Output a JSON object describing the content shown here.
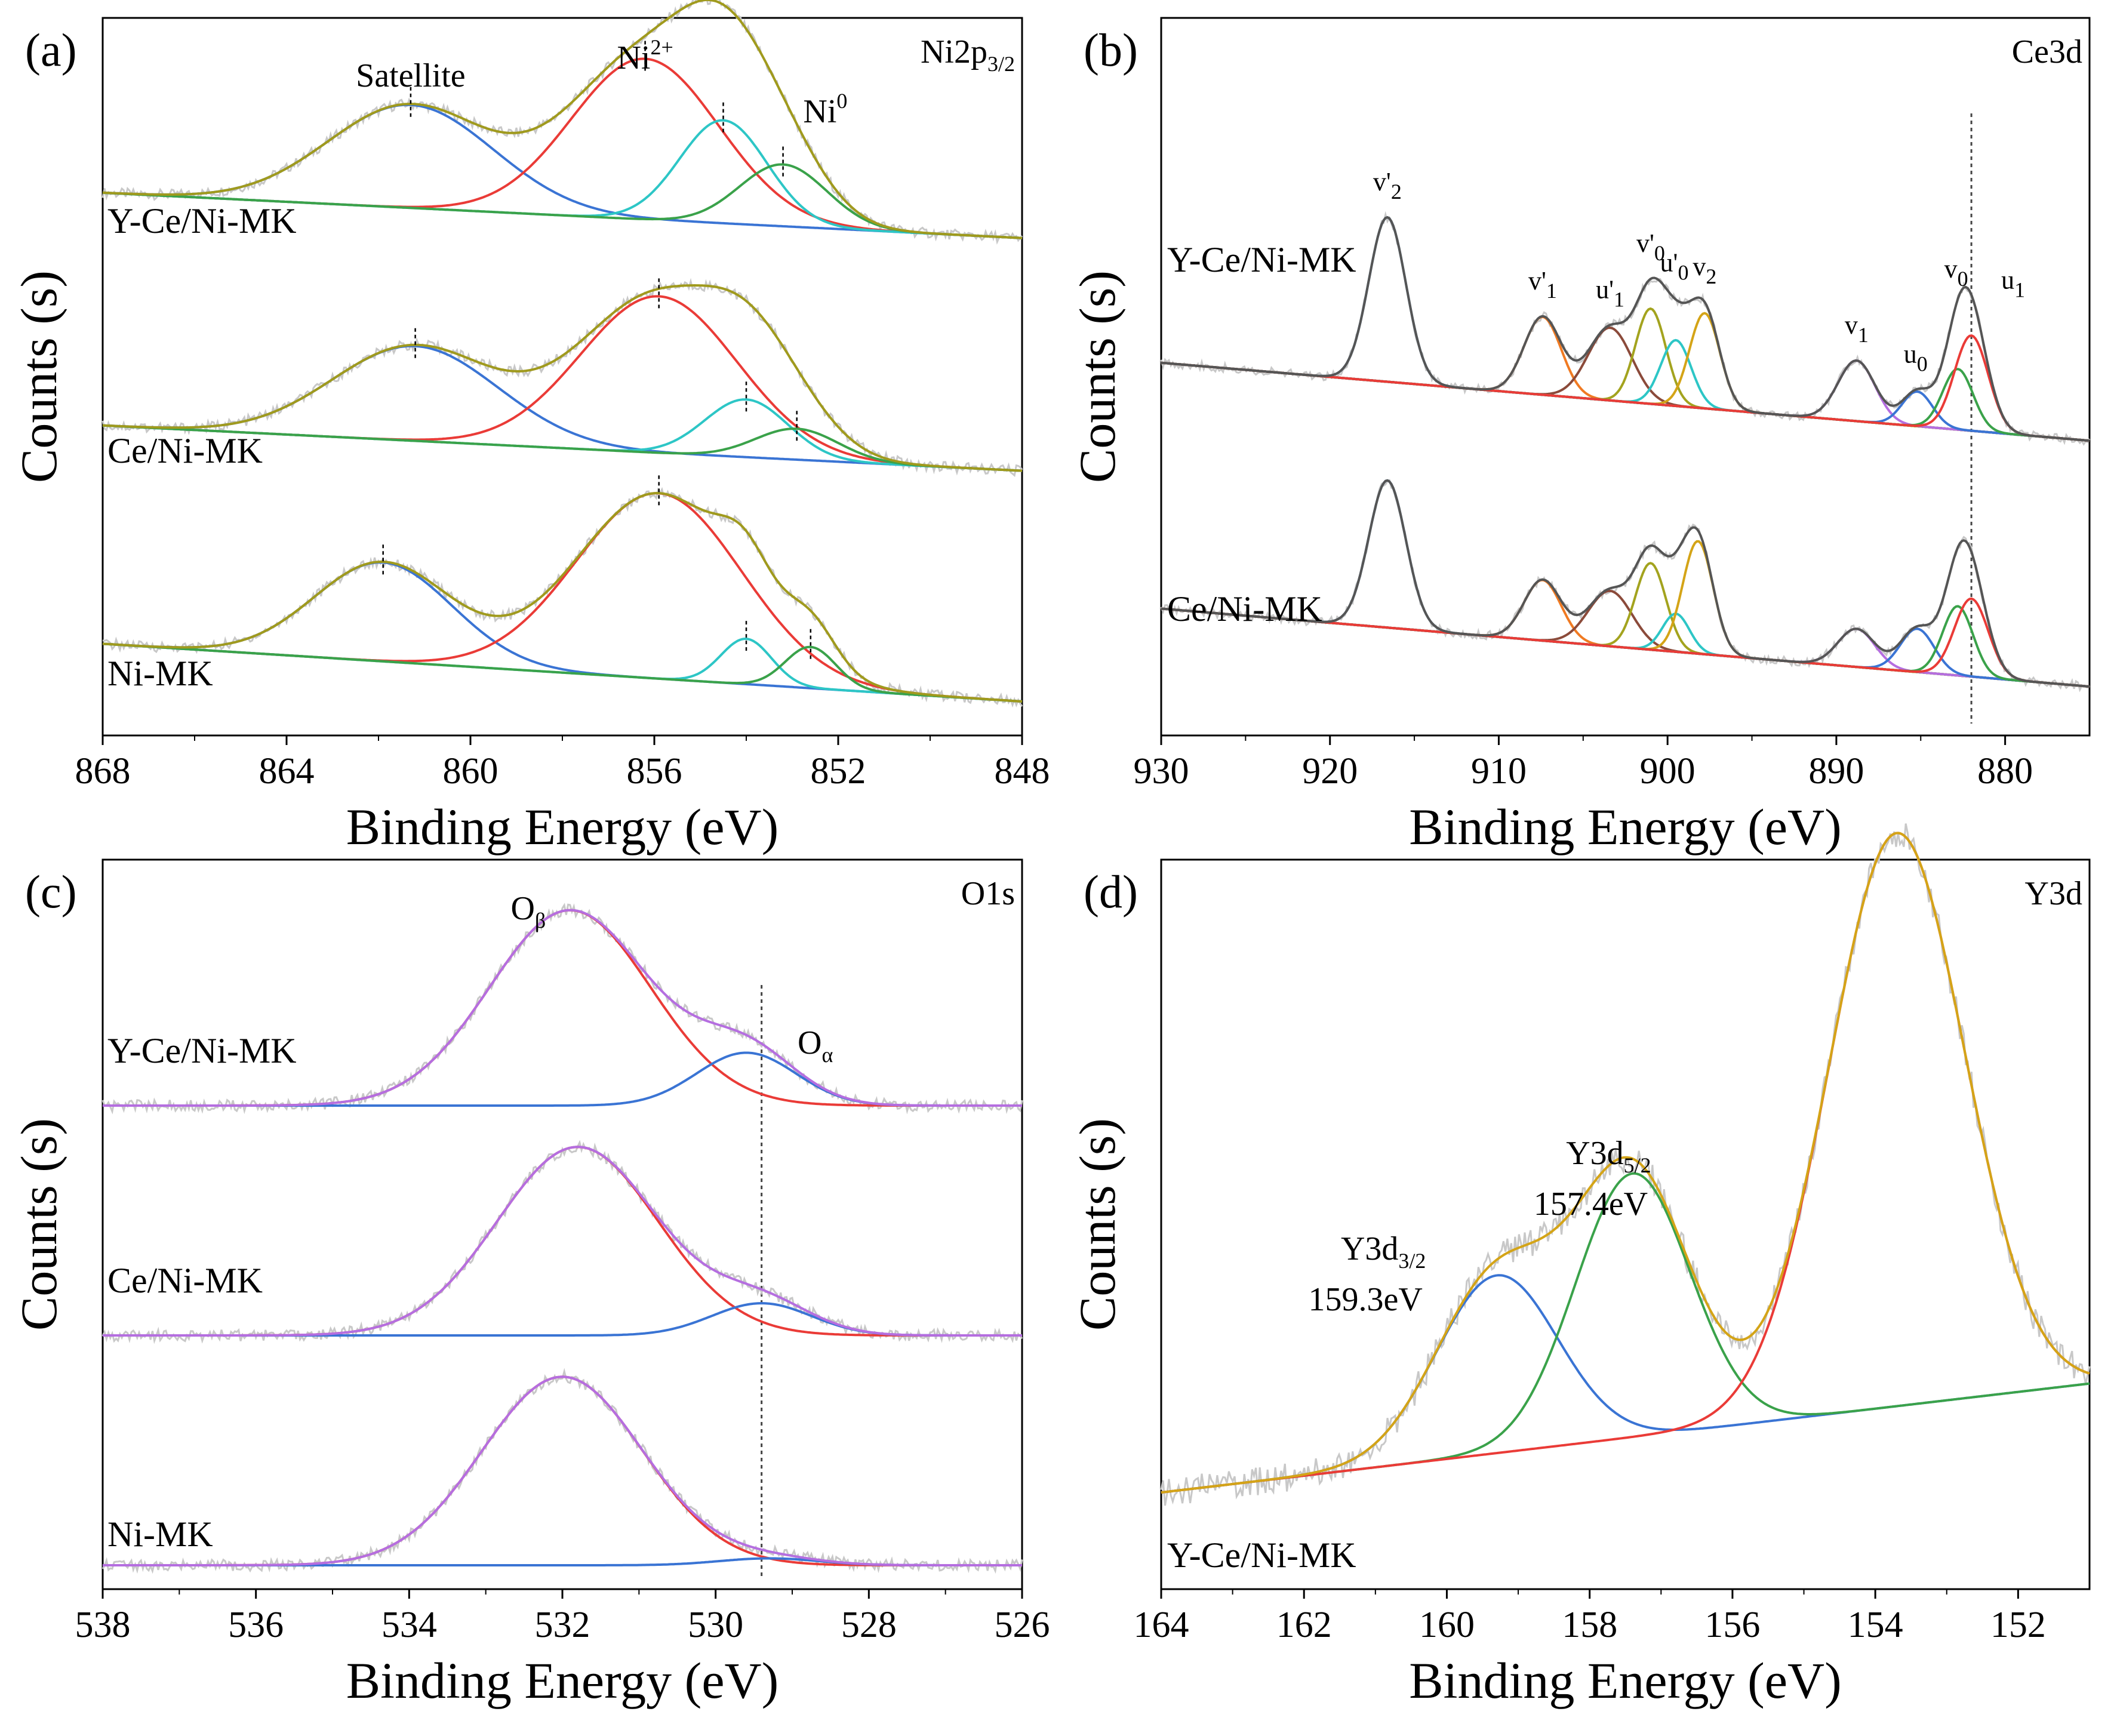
{
  "chart_data": [
    {
      "panel_label": "(a)",
      "type": "line",
      "title": "Ni2p3/2",
      "element_label": {
        "base": "Ni2p",
        "sub": "3/2"
      },
      "xlabel": "Binding Energy (eV)",
      "ylabel": "Counts (s)",
      "xlim": [
        868,
        848
      ],
      "x_ticks": [
        868,
        864,
        860,
        856,
        852,
        848
      ],
      "annotations": [
        {
          "text": "Satellite",
          "x": 861.3
        },
        {
          "text": "Ni",
          "sup": "2+",
          "x": 856.2
        },
        {
          "text": "Ni",
          "sup": "0",
          "x": 852.8
        }
      ],
      "samples": [
        {
          "name": "Y-Ce/Ni-MK",
          "offset": 2.25,
          "background": {
            "start": 0.22,
            "end": 0.0
          },
          "components": [
            {
              "label": "Satellite",
              "center": 861.3,
              "amp": 0.5,
              "width": 1.8,
              "color": "#3a74d4"
            },
            {
              "label": "Ni2+",
              "center": 856.2,
              "amp": 0.78,
              "width": 1.6,
              "color": "#ea3b37"
            },
            {
              "label": "Ni2+ shoulder",
              "center": 854.5,
              "amp": 0.5,
              "width": 0.95,
              "color": "#2dc6c6"
            },
            {
              "label": "Ni0",
              "center": 853.2,
              "amp": 0.3,
              "width": 0.95,
              "color": "#3aa24a"
            }
          ],
          "envelope_color": "#a09a1d",
          "peak_markers": [
            861.3,
            856.2,
            854.5,
            853.2
          ]
        },
        {
          "name": "Ce/Ni-MK",
          "offset": 1.12,
          "background": {
            "start": 0.22,
            "end": 0.0
          },
          "components": [
            {
              "label": "Satellite",
              "center": 861.2,
              "amp": 0.46,
              "width": 1.8,
              "color": "#3a74d4"
            },
            {
              "label": "Ni2+",
              "center": 855.9,
              "amp": 0.76,
              "width": 1.7,
              "color": "#ea3b37"
            },
            {
              "label": "Ni2+ shoulder",
              "center": 854.0,
              "amp": 0.28,
              "width": 0.9,
              "color": "#2dc6c6"
            },
            {
              "label": "Ni0",
              "center": 852.9,
              "amp": 0.15,
              "width": 0.9,
              "color": "#3aa24a"
            }
          ],
          "envelope_color": "#a09a1d",
          "peak_markers": [
            861.2,
            855.9,
            854.0,
            852.9
          ]
        },
        {
          "name": "Ni-MK",
          "offset": 0.0,
          "background": {
            "start": 0.28,
            "end": 0.0
          },
          "components": [
            {
              "label": "Satellite",
              "center": 861.9,
              "amp": 0.48,
              "width": 1.5,
              "color": "#3a74d4"
            },
            {
              "label": "Ni2+",
              "center": 855.9,
              "amp": 0.9,
              "width": 1.8,
              "color": "#ea3b37"
            },
            {
              "label": "Ni2+ shoulder",
              "center": 854.0,
              "amp": 0.22,
              "width": 0.55,
              "color": "#2dc6c6"
            },
            {
              "label": "Ni0",
              "center": 852.6,
              "amp": 0.2,
              "width": 0.55,
              "color": "#3aa24a"
            }
          ],
          "envelope_color": "#a09a1d",
          "peak_markers": [
            861.9,
            855.9,
            854.0,
            852.6
          ]
        }
      ]
    },
    {
      "panel_label": "(b)",
      "type": "line",
      "title": "Ce3d",
      "element_label": {
        "base": "Ce3d",
        "sub": ""
      },
      "xlabel": "Binding Energy (eV)",
      "ylabel": "Counts (s)",
      "xlim": [
        930,
        875
      ],
      "x_ticks": [
        930,
        920,
        910,
        900,
        890,
        880
      ],
      "annotations": [
        {
          "text": "v'",
          "sub": "2",
          "x": 916.6
        },
        {
          "text": "v'",
          "sub": "1",
          "x": 907.4
        },
        {
          "text": "u'",
          "sub": "1",
          "x": 903.4
        },
        {
          "text": "v'",
          "sub": "0",
          "x": 901.0
        },
        {
          "text": "u'",
          "sub": "0",
          "x": 899.6
        },
        {
          "text": "v",
          "sub": "2",
          "x": 897.8
        },
        {
          "text": "v",
          "sub": "1",
          "x": 888.8
        },
        {
          "text": "u",
          "sub": "0",
          "x": 885.3
        },
        {
          "text": "v",
          "sub": "0",
          "x": 882.9
        },
        {
          "text": "u",
          "sub": "1",
          "x": 882.0
        }
      ],
      "reference_line_x": 882.0,
      "samples": [
        {
          "name": "Y-Ce/Ni-MK",
          "offset": 1.42,
          "background": {
            "start": 0.45,
            "end": 0.0
          },
          "components": [
            {
              "label": "v'2",
              "center": 916.6,
              "amp": 0.95,
              "width": 1.1,
              "color": "#4a90c8"
            },
            {
              "label": "v'1",
              "center": 907.4,
              "amp": 0.45,
              "width": 1.1,
              "color": "#f07a22"
            },
            {
              "label": "u'1",
              "center": 903.4,
              "amp": 0.42,
              "width": 1.3,
              "color": "#8b4a3a"
            },
            {
              "label": "v'0",
              "center": 901.0,
              "amp": 0.55,
              "width": 0.9,
              "color": "#a3a31e"
            },
            {
              "label": "u'0",
              "center": 899.5,
              "amp": 0.38,
              "width": 0.9,
              "color": "#2dc6c6"
            },
            {
              "label": "v2",
              "center": 897.8,
              "amp": 0.55,
              "width": 0.9,
              "color": "#d4a417"
            },
            {
              "label": "v1",
              "center": 888.8,
              "amp": 0.35,
              "width": 1.1,
              "color": "#b56ee0"
            },
            {
              "label": "u0",
              "center": 885.2,
              "amp": 0.2,
              "width": 0.9,
              "color": "#3a74d4"
            },
            {
              "label": "v0",
              "center": 882.8,
              "amp": 0.35,
              "width": 0.9,
              "color": "#3aa24a"
            },
            {
              "label": "u1",
              "center": 882.0,
              "amp": 0.55,
              "width": 1.0,
              "color": "#ea3b37"
            }
          ],
          "envelope_color": "#555555"
        },
        {
          "name": "Ce/Ni-MK",
          "offset": 0.0,
          "background": {
            "start": 0.45,
            "end": 0.0
          },
          "components": [
            {
              "label": "v'2",
              "center": 916.6,
              "amp": 0.85,
              "width": 1.1,
              "color": "#4a90c8"
            },
            {
              "label": "v'1",
              "center": 907.4,
              "amp": 0.35,
              "width": 1.1,
              "color": "#f07a22"
            },
            {
              "label": "u'1",
              "center": 903.4,
              "amp": 0.32,
              "width": 1.3,
              "color": "#8b4a3a"
            },
            {
              "label": "v'0",
              "center": 901.0,
              "amp": 0.5,
              "width": 0.9,
              "color": "#a3a31e"
            },
            {
              "label": "u'0",
              "center": 899.5,
              "amp": 0.22,
              "width": 0.8,
              "color": "#2dc6c6"
            },
            {
              "label": "v2",
              "center": 898.2,
              "amp": 0.65,
              "width": 0.9,
              "color": "#d4a417"
            },
            {
              "label": "v1",
              "center": 888.8,
              "amp": 0.22,
              "width": 1.1,
              "color": "#b56ee0"
            },
            {
              "label": "u0",
              "center": 885.2,
              "amp": 0.25,
              "width": 1.0,
              "color": "#3a74d4"
            },
            {
              "label": "v0",
              "center": 882.8,
              "amp": 0.4,
              "width": 0.9,
              "color": "#3aa24a"
            },
            {
              "label": "u1",
              "center": 882.0,
              "amp": 0.45,
              "width": 1.0,
              "color": "#ea3b37"
            }
          ],
          "envelope_color": "#555555"
        }
      ]
    },
    {
      "panel_label": "(c)",
      "type": "line",
      "title": "O1s",
      "element_label": {
        "base": "O1s",
        "sub": ""
      },
      "xlabel": "Binding Energy (eV)",
      "ylabel": "Counts (s)",
      "xlim": [
        538,
        526
      ],
      "x_ticks": [
        538,
        536,
        534,
        532,
        530,
        528,
        526
      ],
      "annotations": [
        {
          "text": "O",
          "sub": "β",
          "x": 531.9
        },
        {
          "text": "O",
          "sub": "α",
          "x": 529.4
        }
      ],
      "reference_line_x": 529.4,
      "samples": [
        {
          "name": "Y-Ce/Ni-MK",
          "offset": 2.0,
          "background": {
            "start": 0.0,
            "end": 0.0
          },
          "components": [
            {
              "label": "Oβ",
              "center": 531.9,
              "amp": 0.85,
              "width": 1.05,
              "color": "#ea3b37"
            },
            {
              "label": "Oα",
              "center": 529.6,
              "amp": 0.23,
              "width": 0.65,
              "color": "#3a74d4"
            }
          ],
          "envelope_color": "#b56ee0"
        },
        {
          "name": "Ce/Ni-MK",
          "offset": 1.0,
          "background": {
            "start": 0.0,
            "end": 0.0
          },
          "components": [
            {
              "label": "Oβ",
              "center": 531.8,
              "amp": 0.82,
              "width": 1.05,
              "color": "#ea3b37"
            },
            {
              "label": "Oα",
              "center": 529.4,
              "amp": 0.14,
              "width": 0.65,
              "color": "#3a74d4"
            }
          ],
          "envelope_color": "#b56ee0"
        },
        {
          "name": "Ni-MK",
          "offset": 0.0,
          "background": {
            "start": 0.0,
            "end": 0.0
          },
          "components": [
            {
              "label": "Oβ",
              "center": 532.0,
              "amp": 0.82,
              "width": 1.05,
              "color": "#ea3b37"
            },
            {
              "label": "Oα",
              "center": 529.3,
              "amp": 0.03,
              "width": 0.65,
              "color": "#3a74d4"
            }
          ],
          "envelope_color": "#b56ee0"
        }
      ]
    },
    {
      "panel_label": "(d)",
      "type": "line",
      "title": "Y3d",
      "element_label": {
        "base": "Y3d",
        "sub": ""
      },
      "xlabel": "Binding Energy (eV)",
      "ylabel": "Counts (s)",
      "xlim": [
        164,
        151
      ],
      "x_ticks": [
        164,
        162,
        160,
        158,
        156,
        154,
        152
      ],
      "annotations": [
        {
          "text": "Y3d",
          "sub": "3/2",
          "value": "159.3eV",
          "x": 159.3
        },
        {
          "text": "Y3d",
          "sub": "5/2",
          "value": "157.4eV",
          "x": 157.4
        }
      ],
      "samples": [
        {
          "name": "Y-Ce/Ni-MK",
          "offset": 0.0,
          "background": {
            "start": 0.0,
            "end": 0.19
          },
          "components": [
            {
              "label": "Y3d3/2",
              "center": 159.3,
              "amp": 0.31,
              "width": 0.85,
              "color": "#3a74d4"
            },
            {
              "label": "Y3d5/2",
              "center": 157.4,
              "amp": 0.46,
              "width": 0.8,
              "color": "#3aa24a"
            },
            {
              "label": "main",
              "center": 153.7,
              "amp": 1.0,
              "width": 0.95,
              "color": "#ea3b37"
            }
          ],
          "envelope_color": "#d4a417"
        }
      ]
    }
  ]
}
